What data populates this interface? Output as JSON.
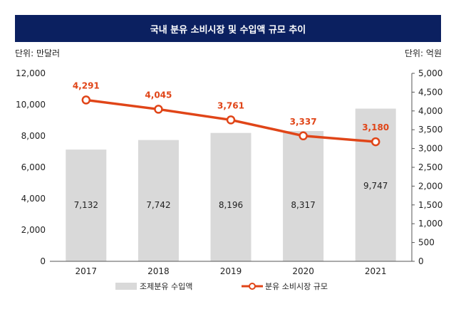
{
  "title": "국내 분유 소비시장 및 수입액 규모 추이",
  "unit_left": "단위: 만달러",
  "unit_right": "단위: 억원",
  "colors": {
    "title_bg": "#0b2060",
    "bar": "#d9d9d9",
    "line": "#e04518"
  },
  "chart_data": {
    "type": "bar",
    "categories": [
      "2017",
      "2018",
      "2019",
      "2020",
      "2021"
    ],
    "series": [
      {
        "name": "조제분유 수입액",
        "type": "bar",
        "axis": "left",
        "values": [
          7132,
          7742,
          8196,
          8317,
          9747
        ],
        "labels": [
          "7,132",
          "7,742",
          "8,196",
          "8,317",
          "9,747"
        ]
      },
      {
        "name": "분유 소비시장 규모",
        "type": "line",
        "axis": "right",
        "values": [
          4291,
          4045,
          3761,
          3337,
          3180
        ],
        "labels": [
          "4,291",
          "4,045",
          "3,761",
          "3,337",
          "3,180"
        ]
      }
    ],
    "y_left": {
      "range": [
        0,
        12000
      ],
      "ticks": [
        "0",
        "2,000",
        "4,000",
        "6,000",
        "8,000",
        "10,000",
        "12,000"
      ]
    },
    "y_right": {
      "range": [
        0,
        5000
      ],
      "ticks": [
        "0",
        "500",
        "1,000",
        "1,500",
        "2,000",
        "2,500",
        "3,000",
        "3,500",
        "4,000",
        "4,500",
        "5,000"
      ]
    },
    "legend_position": "bottom"
  }
}
